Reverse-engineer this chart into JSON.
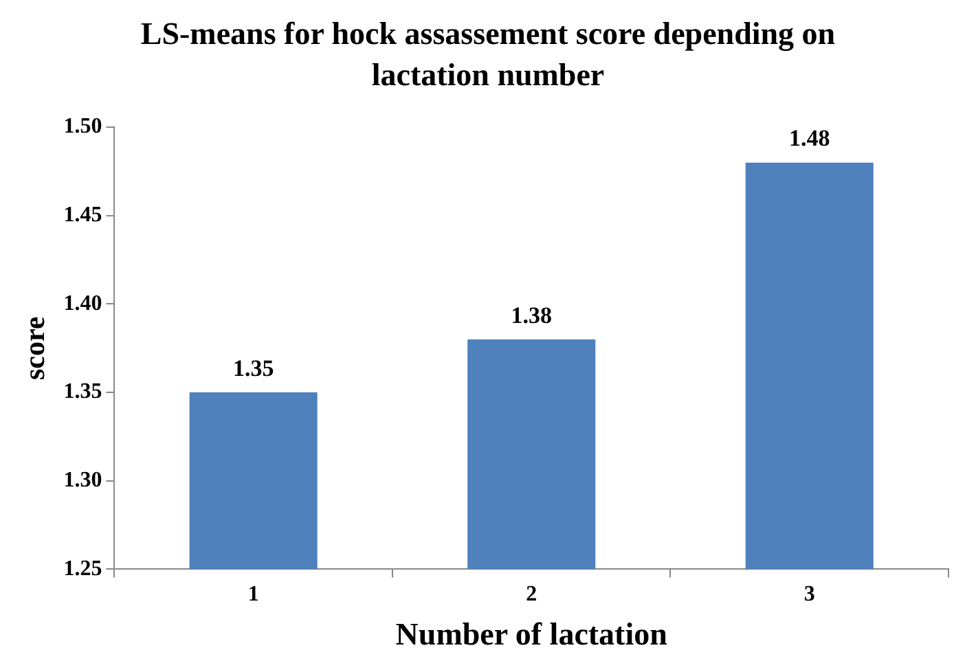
{
  "chart_data": {
    "type": "bar",
    "title": "LS-means for hock assassement score depending on lactation number",
    "xlabel": "Number of lactation",
    "ylabel": "score",
    "categories": [
      "1",
      "2",
      "3"
    ],
    "values": [
      1.35,
      1.38,
      1.48
    ],
    "color": "#4f81bd",
    "ylim": [
      1.25,
      1.5
    ],
    "yticks": [
      {
        "value": 1.25,
        "label": "1.25"
      },
      {
        "value": 1.3,
        "label": "1.30"
      },
      {
        "value": 1.35,
        "label": "1.35"
      },
      {
        "value": 1.4,
        "label": "1.40"
      },
      {
        "value": 1.45,
        "label": "1.45"
      },
      {
        "value": 1.5,
        "label": "1.50"
      }
    ],
    "grid": false,
    "data_labels": true
  }
}
